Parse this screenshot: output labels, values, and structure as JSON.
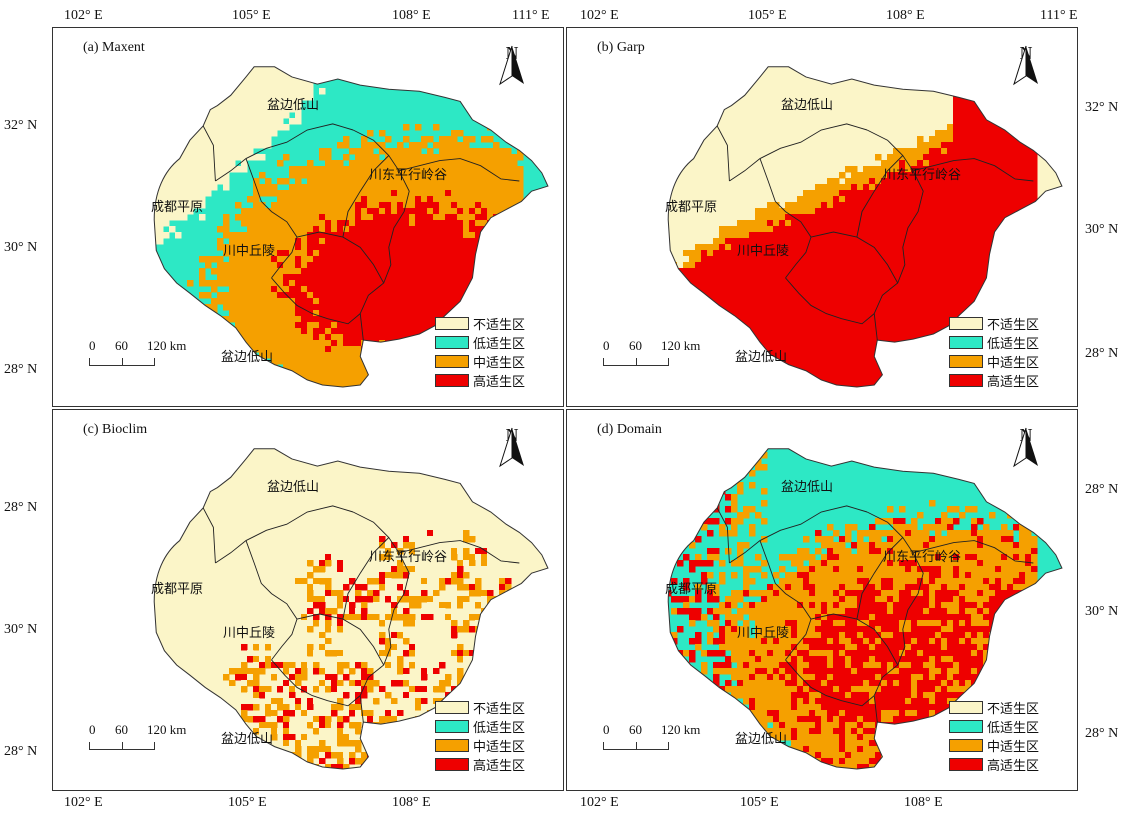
{
  "axes": {
    "top_left": [
      "102° E",
      "105° E",
      "108° E",
      "111° E"
    ],
    "top_right": [
      "102° E",
      "105° E",
      "108° E",
      "111° E"
    ],
    "bottom_left": [
      "102° E",
      "105° E",
      "108° E"
    ],
    "bottom_right": [
      "102° E",
      "105° E",
      "108° E"
    ],
    "right_top": [
      "32° N",
      "30° N",
      "28° N"
    ],
    "left_top": [
      "32° N",
      "30° N",
      "28° N"
    ],
    "left_bottom": [
      "28° N",
      "30° N",
      "28° N"
    ],
    "right_bottom": [
      "28° N",
      "30° N",
      "28° N"
    ]
  },
  "panels": [
    {
      "title": "(a) Maxent",
      "model": "Maxent",
      "dominant": [
        "#2de8c5",
        "#f5a000",
        "#ee0000"
      ]
    },
    {
      "title": "(b) Garp",
      "model": "Garp",
      "dominant": [
        "#fbf5c8",
        "#2de8c5",
        "#ee0000"
      ]
    },
    {
      "title": "(c) Bioclim",
      "model": "Bioclim",
      "dominant": [
        "#fbf5c8",
        "#2de8c5",
        "#f5a000"
      ]
    },
    {
      "title": "(d) Domain",
      "model": "Domain",
      "dominant": [
        "#2de8c5",
        "#f5a000",
        "#ee0000"
      ]
    }
  ],
  "north_label": "N",
  "regions": {
    "basin_edge_north": "盆边低山",
    "chengdu_plain": "成都平原",
    "central_hills": "川中丘陵",
    "east_ridges": "川东平行岭谷",
    "basin_edge_south": "盆边低山"
  },
  "legend": [
    {
      "label": "不适生区",
      "color": "#fbf5c8"
    },
    {
      "label": "低适生区",
      "color": "#2de8c5"
    },
    {
      "label": "中适生区",
      "color": "#f5a000"
    },
    {
      "label": "高适生区",
      "color": "#ee0000"
    }
  ],
  "scale": {
    "ticks": [
      "0",
      "60",
      "120 km"
    ]
  }
}
